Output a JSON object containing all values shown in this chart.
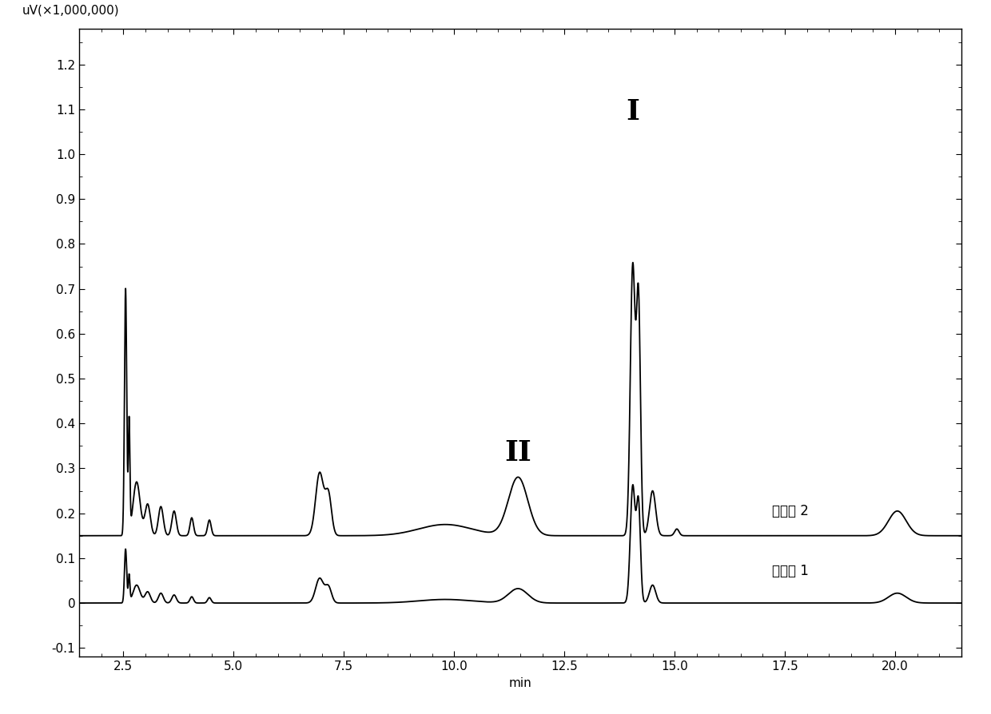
{
  "ylabel": "uV(×1,000,000)",
  "xlabel": "min",
  "xlim": [
    1.5,
    21.5
  ],
  "ylim": [
    -0.12,
    1.28
  ],
  "yticks": [
    -0.1,
    0.0,
    0.1,
    0.2,
    0.3,
    0.4,
    0.5,
    0.6,
    0.7,
    0.8,
    0.9,
    1.0,
    1.1,
    1.2
  ],
  "xticks": [
    2.5,
    5.0,
    7.5,
    10.0,
    12.5,
    15.0,
    17.5,
    20.0
  ],
  "label1": "发酵液 1",
  "label2": "发酵液 2",
  "label_I": "I",
  "label_II": "II",
  "line_color": "#000000",
  "background_color": "#ffffff",
  "line_width": 1.3,
  "baseline1": 0.0,
  "baseline2": 0.15
}
